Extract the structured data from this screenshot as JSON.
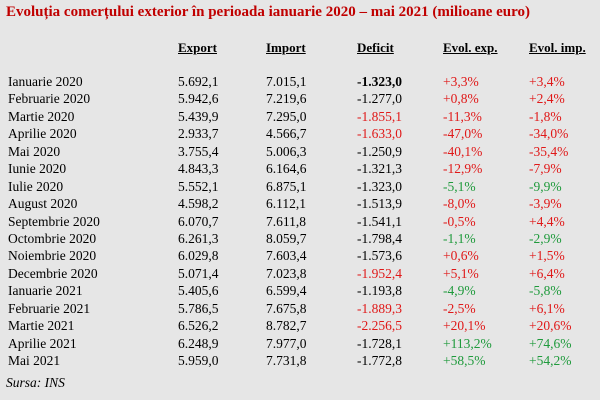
{
  "title": "Evoluția comerțului exterior în perioada ianuarie 2020 – mai 2021 (milioane euro)",
  "headers": {
    "export": "Export",
    "import": "Import",
    "deficit": "Deficit",
    "evol_exp": "Evol. exp.",
    "evol_imp": "Evol. imp."
  },
  "rows": [
    {
      "month": "Ianuarie 2020",
      "export": "5.692,1",
      "import": "7.015,1",
      "deficit": "-1.323,0",
      "evol_exp": "+3,3%",
      "evol_imp": "+3,4%"
    },
    {
      "month": "Februarie 2020",
      "export": "5.942,6",
      "import": "7.219,6",
      "deficit": "-1.277,0",
      "evol_exp": "+0,8%",
      "evol_imp": "+2,4%"
    },
    {
      "month": "Martie 2020",
      "export": "5.439,9",
      "import": "7.295,0",
      "deficit": "-1.855,1",
      "evol_exp": "-11,3%",
      "evol_imp": "-1,8%"
    },
    {
      "month": "Aprilie 2020",
      "export": "2.933,7",
      "import": "4.566,7",
      "deficit": "-1.633,0",
      "evol_exp": "-47,0%",
      "evol_imp": "-34,0%"
    },
    {
      "month": "Mai 2020",
      "export": "3.755,4",
      "import": "5.006,3",
      "deficit": "-1.250,9",
      "evol_exp": "-40,1%",
      "evol_imp": "-35,4%"
    },
    {
      "month": "Iunie 2020",
      "export": "4.843,3",
      "import": "6.164,6",
      "deficit": "-1.321,3",
      "evol_exp": "-12,9%",
      "evol_imp": "-7,9%"
    },
    {
      "month": "Iulie 2020",
      "export": "5.552,1",
      "import": "6.875,1",
      "deficit": "-1.323,0",
      "evol_exp": "-5,1%",
      "evol_imp": "-9,9%"
    },
    {
      "month": "August 2020",
      "export": "4.598,2",
      "import": "6.112,1",
      "deficit": "-1.513,9",
      "evol_exp": "-8,0%",
      "evol_imp": "-3,9%"
    },
    {
      "month": "Septembrie 2020",
      "export": "6.070,7",
      "import": "7.611,8",
      "deficit": "-1.541,1",
      "evol_exp": "-0,5%",
      "evol_imp": "+4,4%"
    },
    {
      "month": "Octombrie 2020",
      "export": "6.261,3",
      "import": "8.059,7",
      "deficit": "-1.798,4",
      "evol_exp": "-1,1%",
      "evol_imp": "-2,9%"
    },
    {
      "month": "Noiembrie 2020",
      "export": "6.029,8",
      "import": "7.603,4",
      "deficit": "-1.573,6",
      "evol_exp": "+0,6%",
      "evol_imp": "+1,5%"
    },
    {
      "month": "Decembrie 2020",
      "export": "5.071,4",
      "import": "7.023,8",
      "deficit": "-1.952,4",
      "evol_exp": "+5,1%",
      "evol_imp": "+6,4%"
    },
    {
      "month": "Ianuarie 2021",
      "export": "5.405,6",
      "import": "6.599,4",
      "deficit": "-1.193,8",
      "evol_exp": "-4,9%",
      "evol_imp": "-5,8%"
    },
    {
      "month": "Februarie 2021",
      "export": "5.786,5",
      "import": "7.675,8",
      "deficit": "-1.889,3",
      "evol_exp": "-2,5%",
      "evol_imp": "+6,1%"
    },
    {
      "month": "Martie 2021",
      "export": "6.526,2",
      "import": "8.782,7",
      "deficit": "-2.256,5",
      "evol_exp": "+20,1%",
      "evol_imp": "+20,6%"
    },
    {
      "month": "Aprilie 2021",
      "export": "6.248,9",
      "import": "7.977,0",
      "deficit": "-1.728,1",
      "evol_exp": "+113,2%",
      "evol_imp": "+74,6%"
    },
    {
      "month": "Mai 2021",
      "export": "5.959,0",
      "import": "7.731,8",
      "deficit": "-1.772,8",
      "evol_exp": "+58,5%",
      "evol_imp": "+54,2%"
    }
  ],
  "styles": {
    "deficit_color": [
      "black",
      "black",
      "red",
      "red",
      "black",
      "black",
      "black",
      "black",
      "black",
      "black",
      "black",
      "red",
      "black",
      "red",
      "red",
      "black",
      "black"
    ],
    "deficit_bold": [
      true,
      false,
      false,
      false,
      false,
      false,
      false,
      false,
      false,
      false,
      false,
      false,
      false,
      false,
      false,
      false,
      false
    ],
    "evol_exp_color": [
      "red",
      "red",
      "red",
      "red",
      "red",
      "red",
      "green",
      "red",
      "red",
      "green",
      "red",
      "red",
      "green",
      "red",
      "red",
      "green",
      "green"
    ],
    "evol_imp_color": [
      "red",
      "red",
      "red",
      "red",
      "red",
      "red",
      "green",
      "red",
      "red",
      "green",
      "red",
      "red",
      "green",
      "red",
      "red",
      "green",
      "green"
    ]
  },
  "source": "Sursa: INS"
}
